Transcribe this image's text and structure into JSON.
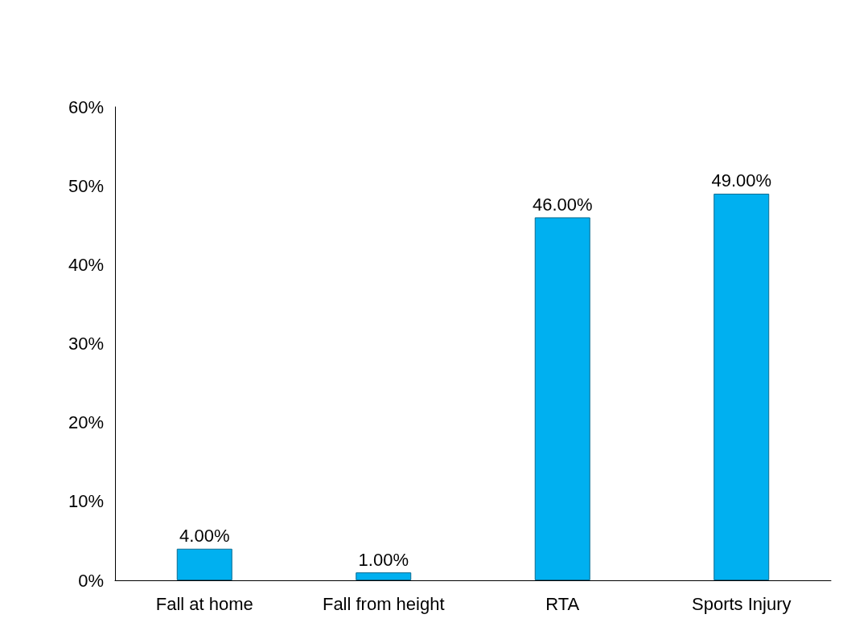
{
  "chart_data": {
    "type": "bar",
    "categories": [
      "Fall at home",
      "Fall from height",
      "RTA",
      "Sports Injury"
    ],
    "values": [
      4,
      1,
      46,
      49
    ],
    "value_labels": [
      "4.00%",
      "1.00%",
      "46.00%",
      "49.00%"
    ],
    "color": "#00b0f0",
    "ylim": [
      0,
      60
    ],
    "yticks": [
      {
        "value": 0,
        "label": "0%"
      },
      {
        "value": 10,
        "label": "10%"
      },
      {
        "value": 20,
        "label": "20%"
      },
      {
        "value": 30,
        "label": "30%"
      },
      {
        "value": 40,
        "label": "40%"
      },
      {
        "value": 50,
        "label": "50%"
      },
      {
        "value": 60,
        "label": "60%"
      }
    ],
    "grid": false
  }
}
